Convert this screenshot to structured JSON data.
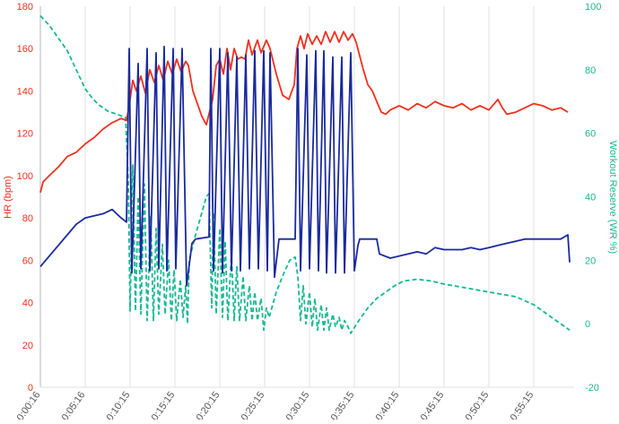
{
  "chart_data": {
    "type": "line",
    "title": "",
    "xlabel": "",
    "ylabel": "HR (bpm)",
    "y2label": "Workout Reserve (WR %)",
    "ylim": [
      0,
      180
    ],
    "y2lim": [
      -20,
      100
    ],
    "yticks": [
      "0",
      "20",
      "40",
      "60",
      "80",
      "100",
      "120",
      "140",
      "160",
      "180"
    ],
    "y2ticks": [
      "-20",
      "0",
      "20",
      "40",
      "60",
      "80",
      "100"
    ],
    "xticks": [
      "0:00:16",
      "0:05:16",
      "0:10:15",
      "0:15:15",
      "0:20:15",
      "0:25:15",
      "0:30:15",
      "0:35:15",
      "0:40:15",
      "0:45:15",
      "0:50:15",
      "0:55:15"
    ],
    "xrange_minutes": [
      0,
      59.5
    ],
    "grid": "vertical",
    "colors": {
      "hr": "#f0301e",
      "power": "#1a2a9e",
      "wr": "#17b890",
      "grid": "#e2e2e2",
      "xtick": "#555555"
    },
    "series": [
      {
        "name": "HR",
        "axis": "left",
        "style": "solid",
        "color": "#f0301e",
        "points": [
          [
            0,
            92
          ],
          [
            0.3,
            97
          ],
          [
            1,
            100
          ],
          [
            2,
            104
          ],
          [
            3,
            109
          ],
          [
            4,
            111
          ],
          [
            5,
            115
          ],
          [
            6,
            118
          ],
          [
            7,
            122
          ],
          [
            8,
            125
          ],
          [
            9,
            127
          ],
          [
            9.6,
            126
          ],
          [
            9.9,
            133
          ],
          [
            10.3,
            145
          ],
          [
            10.7,
            140
          ],
          [
            11.2,
            147
          ],
          [
            11.7,
            139
          ],
          [
            12.2,
            150
          ],
          [
            12.7,
            144
          ],
          [
            13.2,
            152
          ],
          [
            13.7,
            145
          ],
          [
            14.2,
            154
          ],
          [
            14.7,
            148
          ],
          [
            15.2,
            155
          ],
          [
            15.7,
            149
          ],
          [
            16.2,
            154
          ],
          [
            16.5,
            152
          ],
          [
            17,
            140
          ],
          [
            18,
            128
          ],
          [
            18.5,
            124
          ],
          [
            19.2,
            136
          ],
          [
            19.6,
            152
          ],
          [
            20,
            155
          ],
          [
            20.4,
            148
          ],
          [
            20.8,
            160
          ],
          [
            21.2,
            150
          ],
          [
            21.6,
            160
          ],
          [
            22,
            155
          ],
          [
            22.4,
            156
          ],
          [
            22.8,
            155
          ],
          [
            23.2,
            164
          ],
          [
            23.6,
            157
          ],
          [
            24.2,
            164
          ],
          [
            24.6,
            158
          ],
          [
            25.2,
            164
          ],
          [
            25.6,
            160
          ],
          [
            26.3,
            148
          ],
          [
            27,
            138
          ],
          [
            27.7,
            136
          ],
          [
            28.3,
            143
          ],
          [
            28.6,
            160
          ],
          [
            29,
            166
          ],
          [
            29.4,
            160
          ],
          [
            29.8,
            167
          ],
          [
            30.3,
            162
          ],
          [
            30.8,
            166
          ],
          [
            31.3,
            162
          ],
          [
            31.8,
            168
          ],
          [
            32.3,
            163
          ],
          [
            32.8,
            168
          ],
          [
            33.3,
            163
          ],
          [
            33.8,
            168
          ],
          [
            34.3,
            164
          ],
          [
            34.8,
            167
          ],
          [
            35.2,
            163
          ],
          [
            36,
            150
          ],
          [
            36.5,
            143
          ],
          [
            37,
            140
          ],
          [
            37.5,
            135
          ],
          [
            38,
            130
          ],
          [
            38.5,
            129
          ],
          [
            39,
            131
          ],
          [
            40,
            133
          ],
          [
            41,
            131
          ],
          [
            42,
            134
          ],
          [
            43,
            132
          ],
          [
            44,
            135
          ],
          [
            45,
            133
          ],
          [
            46,
            132
          ],
          [
            47,
            134
          ],
          [
            48,
            131
          ],
          [
            49,
            133
          ],
          [
            50,
            131
          ],
          [
            51,
            136
          ],
          [
            51.5,
            132
          ],
          [
            52,
            129
          ],
          [
            53,
            130
          ],
          [
            54,
            132
          ],
          [
            55,
            134
          ],
          [
            56,
            133
          ],
          [
            57,
            131
          ],
          [
            58,
            132
          ],
          [
            58.8,
            130
          ]
        ]
      },
      {
        "name": "Power",
        "axis": "left",
        "style": "solid",
        "color": "#1a2a9e",
        "points": [
          [
            0,
            57
          ],
          [
            1,
            62
          ],
          [
            2,
            67
          ],
          [
            3,
            72
          ],
          [
            4,
            77
          ],
          [
            5,
            80
          ],
          [
            6,
            81
          ],
          [
            7,
            82
          ],
          [
            8,
            84
          ],
          [
            9,
            80
          ],
          [
            9.6,
            78
          ],
          [
            9.9,
            160
          ],
          [
            10.2,
            54
          ],
          [
            10.9,
            153
          ],
          [
            11.2,
            56
          ],
          [
            11.9,
            160
          ],
          [
            12.2,
            55
          ],
          [
            12.9,
            158
          ],
          [
            13.2,
            56
          ],
          [
            13.8,
            161
          ],
          [
            14.1,
            55
          ],
          [
            14.8,
            160
          ],
          [
            15.1,
            56
          ],
          [
            15.8,
            160
          ],
          [
            16.3,
            48
          ],
          [
            16.9,
            68
          ],
          [
            17.3,
            70
          ],
          [
            18.8,
            71
          ],
          [
            19.0,
            160
          ],
          [
            19.3,
            55
          ],
          [
            20.0,
            160
          ],
          [
            20.3,
            54
          ],
          [
            20.9,
            158
          ],
          [
            21.3,
            55
          ],
          [
            21.9,
            156
          ],
          [
            22.3,
            55
          ],
          [
            22.9,
            157
          ],
          [
            23.3,
            56
          ],
          [
            23.9,
            159
          ],
          [
            24.3,
            56
          ],
          [
            24.9,
            159
          ],
          [
            25.3,
            55
          ],
          [
            25.6,
            158
          ],
          [
            26.1,
            52
          ],
          [
            26.6,
            70
          ],
          [
            28.4,
            70
          ],
          [
            28.7,
            160
          ],
          [
            29.0,
            55
          ],
          [
            29.7,
            157
          ],
          [
            30.0,
            56
          ],
          [
            30.7,
            159
          ],
          [
            31.0,
            55
          ],
          [
            31.6,
            159
          ],
          [
            31.9,
            54
          ],
          [
            32.6,
            156
          ],
          [
            32.9,
            54
          ],
          [
            33.6,
            156
          ],
          [
            33.9,
            54
          ],
          [
            34.6,
            158
          ],
          [
            35.0,
            55
          ],
          [
            35.4,
            67
          ],
          [
            35.6,
            70
          ],
          [
            37.5,
            70
          ],
          [
            37.8,
            63
          ],
          [
            39,
            61
          ],
          [
            40,
            62
          ],
          [
            41,
            63
          ],
          [
            42,
            64
          ],
          [
            43,
            63
          ],
          [
            44,
            66
          ],
          [
            45,
            65
          ],
          [
            46,
            65
          ],
          [
            47,
            65
          ],
          [
            48,
            66
          ],
          [
            49,
            65
          ],
          [
            50,
            66
          ],
          [
            51,
            67
          ],
          [
            52,
            68
          ],
          [
            53,
            69
          ],
          [
            54,
            70
          ],
          [
            55,
            70
          ],
          [
            56,
            70
          ],
          [
            57,
            70
          ],
          [
            58,
            70
          ],
          [
            58.8,
            72
          ],
          [
            59,
            59
          ]
        ]
      },
      {
        "name": "WR",
        "axis": "right",
        "style": "dashed",
        "color": "#17b890",
        "points": [
          [
            0,
            97
          ],
          [
            1,
            94
          ],
          [
            2,
            90
          ],
          [
            3,
            86
          ],
          [
            4,
            80
          ],
          [
            5,
            74
          ],
          [
            5.8,
            71
          ],
          [
            6.5,
            69
          ],
          [
            7.5,
            67
          ],
          [
            8.5,
            66
          ],
          [
            9.5,
            65
          ],
          [
            9.8,
            45
          ],
          [
            10.0,
            4
          ],
          [
            10.3,
            50
          ],
          [
            10.6,
            4
          ],
          [
            10.9,
            40
          ],
          [
            11.2,
            3
          ],
          [
            11.6,
            44
          ],
          [
            11.9,
            1
          ],
          [
            12.3,
            34
          ],
          [
            12.6,
            1
          ],
          [
            12.9,
            30
          ],
          [
            13.2,
            3
          ],
          [
            13.6,
            25
          ],
          [
            13.9,
            3
          ],
          [
            14.3,
            20
          ],
          [
            14.6,
            1
          ],
          [
            14.9,
            17
          ],
          [
            15.2,
            1
          ],
          [
            15.6,
            14
          ],
          [
            15.9,
            2
          ],
          [
            16.2,
            12
          ],
          [
            16.4,
            0
          ],
          [
            16.6,
            20
          ],
          [
            17.2,
            27
          ],
          [
            17.8,
            33
          ],
          [
            18.5,
            40
          ],
          [
            18.8,
            41
          ],
          [
            19.1,
            5
          ],
          [
            19.3,
            35
          ],
          [
            19.6,
            3
          ],
          [
            20.0,
            30
          ],
          [
            20.3,
            2
          ],
          [
            20.6,
            26
          ],
          [
            20.9,
            1
          ],
          [
            21.3,
            22
          ],
          [
            21.6,
            1
          ],
          [
            21.9,
            18
          ],
          [
            22.2,
            1
          ],
          [
            22.6,
            15
          ],
          [
            22.9,
            1
          ],
          [
            23.3,
            12
          ],
          [
            23.6,
            1
          ],
          [
            23.9,
            10
          ],
          [
            24.2,
            1
          ],
          [
            24.6,
            8
          ],
          [
            24.9,
            -2
          ],
          [
            25.2,
            5
          ],
          [
            25.5,
            2
          ],
          [
            26.3,
            10
          ],
          [
            27,
            15
          ],
          [
            27.8,
            20
          ],
          [
            28.4,
            21
          ],
          [
            28.7,
            15
          ],
          [
            29.0,
            1
          ],
          [
            29.3,
            12
          ],
          [
            29.6,
            0
          ],
          [
            30.0,
            10
          ],
          [
            30.3,
            -1
          ],
          [
            30.6,
            8
          ],
          [
            30.9,
            -2
          ],
          [
            31.3,
            6
          ],
          [
            31.6,
            -2
          ],
          [
            31.9,
            5
          ],
          [
            32.2,
            -2
          ],
          [
            32.6,
            3
          ],
          [
            32.9,
            -1
          ],
          [
            33.3,
            2
          ],
          [
            33.6,
            -2
          ],
          [
            33.9,
            1
          ],
          [
            34.3,
            -1
          ],
          [
            34.6,
            -3
          ],
          [
            35.5,
            1
          ],
          [
            36.5,
            5
          ],
          [
            37.5,
            8
          ],
          [
            38.5,
            10
          ],
          [
            39.5,
            12
          ],
          [
            40.5,
            13.5
          ],
          [
            42,
            14
          ],
          [
            43.5,
            13.5
          ],
          [
            45,
            12.5
          ],
          [
            47,
            11.5
          ],
          [
            49,
            10.5
          ],
          [
            51,
            9.5
          ],
          [
            53,
            8.5
          ],
          [
            55,
            6
          ],
          [
            57,
            2
          ],
          [
            59,
            -2
          ]
        ]
      }
    ]
  }
}
